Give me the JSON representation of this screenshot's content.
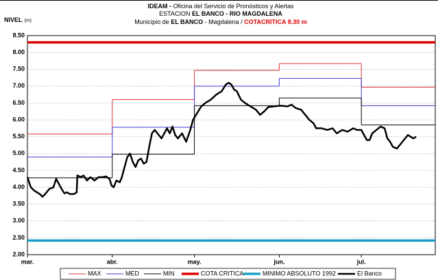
{
  "chart_data": {
    "type": "line",
    "title_lines": [
      [
        "IDEAM - ",
        "Oficina del Servicio de Pronósticos y Alertas"
      ],
      [
        "ESTACION ",
        "EL BANCO - RIO MAGDALENA"
      ],
      [
        "Municipio de ",
        "EL BANCO",
        " - Magdalena  /  ",
        "COTACRITICA 8.30 m"
      ]
    ],
    "y_label": [
      "NIVEL",
      "(m)"
    ],
    "xlim": [
      0,
      149
    ],
    "xticks": [
      {
        "value": 0,
        "label": "mar."
      },
      {
        "value": 31,
        "label": "abr."
      },
      {
        "value": 61,
        "label": "may."
      },
      {
        "value": 92,
        "label": "jun."
      },
      {
        "value": 122,
        "label": "jul."
      }
    ],
    "ylim": [
      2,
      8.5
    ],
    "yticks": [
      {
        "value": 2,
        "label": "2.00"
      },
      {
        "value": 2.5,
        "label": "2.50"
      },
      {
        "value": 3,
        "label": "3.00"
      },
      {
        "value": 3.5,
        "label": "3.50"
      },
      {
        "value": 4,
        "label": "4.00"
      },
      {
        "value": 4.5,
        "label": "4.50"
      },
      {
        "value": 5,
        "label": "5.00"
      },
      {
        "value": 5.5,
        "label": "5.50"
      },
      {
        "value": 6,
        "label": "6.00"
      },
      {
        "value": 6.5,
        "label": "6.50"
      },
      {
        "value": 7,
        "label": "7.00"
      },
      {
        "value": 7.5,
        "label": "7.50"
      },
      {
        "value": 8,
        "label": "8.00"
      },
      {
        "value": 8.5,
        "label": "8.50"
      }
    ],
    "grid": true,
    "legend": "bottom",
    "series": [
      {
        "name": "MAX",
        "color": "#e03030",
        "width": 1,
        "draw": "step",
        "values": [
          5.58,
          6.6,
          7.47,
          7.67,
          6.97
        ]
      },
      {
        "name": "MED",
        "color": "#3a3ad0",
        "width": 1,
        "draw": "step",
        "values": [
          4.9,
          5.78,
          7.0,
          7.23,
          6.42
        ]
      },
      {
        "name": "MIN",
        "color": "#000000",
        "width": 1,
        "draw": "step",
        "values": [
          4.28,
          4.98,
          6.42,
          6.65,
          5.85
        ]
      },
      {
        "name": "COTA CRITICA",
        "color": "#e00000",
        "width": 3.5,
        "draw": "level",
        "values": [
          8.3
        ]
      },
      {
        "name": "MINIMO ABSOLUTO 1992",
        "color": "#1aa0c8",
        "width": 3.5,
        "draw": "level",
        "values": [
          2.42
        ]
      },
      {
        "name": "El Banco",
        "color": "#000000",
        "width": 2.5,
        "draw": "line",
        "x": [
          0,
          1.25,
          2.5,
          4.5,
          5.5,
          6.5,
          8,
          9.5,
          10.5,
          11.5,
          12.5,
          13.5,
          14.5,
          15.5,
          17,
          18,
          18.25,
          19.5,
          20.5,
          21.75,
          23,
          24.5,
          26,
          27.5,
          28.75,
          30,
          30.75,
          31.5,
          32.5,
          33.75,
          34.5,
          35.5,
          36.5,
          37.5,
          38.5,
          39.5,
          40.5,
          41.5,
          42.5,
          43.5,
          44.5,
          45.5,
          46.5,
          47.5,
          49,
          50,
          51,
          52,
          53,
          54,
          55,
          56.5,
          58,
          59.5,
          60.5,
          62,
          63.5,
          65,
          67,
          69,
          71,
          72.5,
          73.5,
          74.5,
          75.5,
          76.5,
          78,
          79.5,
          81.5,
          83.5,
          85,
          86.5,
          88,
          90,
          92.5,
          95,
          96.5,
          98,
          100,
          101.5,
          103,
          104.5,
          105.5,
          107.5,
          109.5,
          111.5,
          113,
          115,
          117,
          119,
          120.5,
          122,
          123,
          124,
          125,
          126,
          127.5,
          129,
          130.5,
          131.5,
          132.5,
          133.5,
          135,
          136,
          137.5,
          139,
          140,
          141,
          142
        ],
        "values": [
          4.3,
          4.0,
          3.9,
          3.8,
          3.72,
          3.8,
          3.95,
          4.0,
          4.25,
          4.1,
          3.95,
          3.82,
          3.85,
          3.8,
          3.8,
          3.85,
          4.35,
          4.3,
          4.35,
          4.2,
          4.3,
          4.2,
          4.3,
          4.3,
          4.32,
          4.25,
          4.05,
          4.0,
          4.2,
          4.15,
          4.3,
          4.6,
          4.9,
          5.0,
          4.75,
          4.6,
          4.8,
          4.85,
          4.7,
          4.75,
          5.2,
          5.6,
          5.7,
          5.6,
          5.45,
          5.6,
          5.75,
          5.6,
          5.8,
          5.55,
          5.45,
          5.6,
          5.35,
          5.7,
          6.0,
          6.2,
          6.4,
          6.5,
          6.6,
          6.75,
          6.85,
          7.05,
          7.1,
          7.05,
          6.9,
          6.85,
          6.6,
          6.5,
          6.4,
          6.3,
          6.15,
          6.25,
          6.38,
          6.4,
          6.42,
          6.4,
          6.45,
          6.35,
          6.3,
          6.15,
          6.0,
          5.9,
          5.75,
          5.75,
          5.7,
          5.75,
          5.6,
          5.7,
          5.65,
          5.75,
          5.7,
          5.7,
          5.55,
          5.4,
          5.4,
          5.6,
          5.7,
          5.8,
          5.75,
          5.45,
          5.35,
          5.2,
          5.15,
          5.25,
          5.4,
          5.55,
          5.5,
          5.45,
          5.5
        ]
      }
    ]
  }
}
